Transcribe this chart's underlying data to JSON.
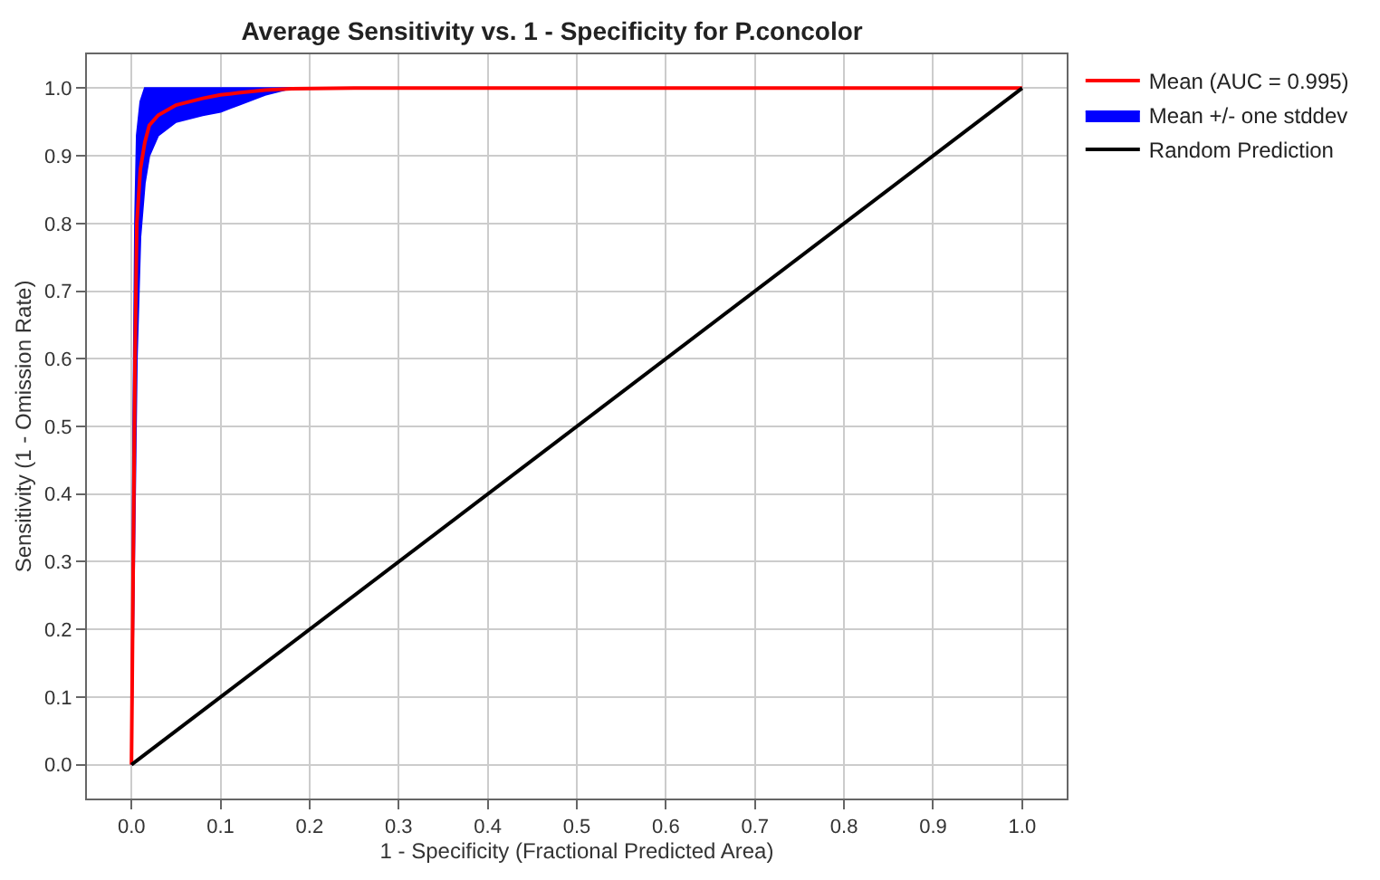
{
  "chart_data": {
    "type": "line",
    "title": "Average Sensitivity vs. 1 - Specificity for P.concolor",
    "xlabel": "1 - Specificity (Fractional Predicted Area)",
    "ylabel": "Sensitivity (1 - Omission Rate)",
    "x": [
      0,
      0.002,
      0.004,
      0.006,
      0.01,
      0.015,
      0.02,
      0.03,
      0.05,
      0.08,
      0.1,
      0.12,
      0.15,
      0.18,
      0.25,
      0.5,
      1
    ],
    "series": [
      {
        "name": "Mean (AUC = 0.995)",
        "color": "#ff0000",
        "values": [
          0,
          0.3,
          0.6,
          0.8,
          0.88,
          0.92,
          0.945,
          0.96,
          0.975,
          0.985,
          0.99,
          0.993,
          0.997,
          0.999,
          1.0,
          1.0,
          1.0
        ],
        "lower": [
          0,
          0.2,
          0.4,
          0.6,
          0.78,
          0.86,
          0.9,
          0.93,
          0.95,
          0.96,
          0.965,
          0.975,
          0.99,
          1.0,
          1.0,
          1.0,
          1.0
        ],
        "upper": [
          0,
          0.5,
          0.8,
          0.93,
          0.98,
          1.0,
          1.0,
          1.0,
          1.0,
          1.0,
          1.0,
          1.0,
          1.0,
          1.0,
          1.0,
          1.0,
          1.0
        ]
      },
      {
        "name": "Mean +/- one stddev",
        "color": "#0000ff",
        "values": [
          null,
          null,
          null,
          null,
          null,
          null,
          null,
          null,
          null,
          null,
          null,
          null,
          null,
          null,
          null,
          null,
          null
        ]
      },
      {
        "name": "Random Prediction",
        "color": "#000000",
        "x": [
          0,
          1
        ],
        "values": [
          0,
          1
        ]
      }
    ],
    "xlim": [
      -0.05,
      1.05
    ],
    "ylim": [
      -0.05,
      1.05
    ],
    "xticks": [
      {
        "value": 0,
        "label": "0.0"
      },
      0.1,
      0.2,
      0.3,
      0.4,
      0.5,
      0.6,
      0.7,
      0.8,
      0.9,
      {
        "value": 1,
        "label": "1.0"
      }
    ],
    "yticks": [
      {
        "value": 0,
        "label": "0.0"
      },
      0.1,
      0.2,
      0.3,
      0.4,
      0.5,
      0.6,
      0.7,
      0.8,
      0.9,
      {
        "value": 1,
        "label": "1.0"
      }
    ],
    "grid": true,
    "legend": "top right",
    "marker": "none",
    "line_style": "solid"
  }
}
